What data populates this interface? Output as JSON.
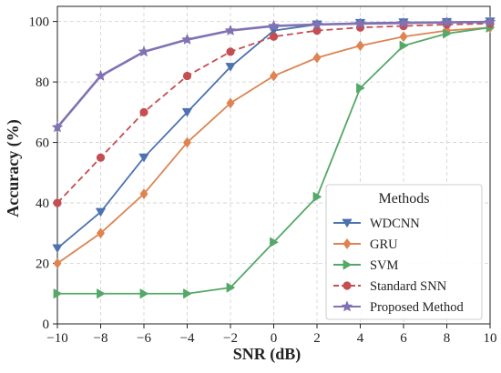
{
  "chart_data": {
    "type": "line",
    "title": "",
    "xlabel": "SNR (dB)",
    "ylabel": "Accuracy (%)",
    "xlim": [
      -10,
      10
    ],
    "ylim": [
      0,
      105
    ],
    "x": [
      -10,
      -8,
      -6,
      -4,
      -2,
      0,
      2,
      4,
      6,
      8,
      10
    ],
    "xticks": [
      -10,
      -8,
      -6,
      -4,
      -2,
      0,
      2,
      4,
      6,
      8,
      10
    ],
    "yticks": [
      0,
      20,
      40,
      60,
      80,
      100
    ],
    "grid": true,
    "legend": {
      "title": "Methods",
      "position": "bottom-right"
    },
    "series": [
      {
        "name": "WDCNN",
        "color": "#4c72b0",
        "marker": "triangle-down",
        "dashed": false,
        "values": [
          25,
          37,
          55,
          70,
          85,
          97,
          99,
          99.5,
          99.7,
          99.8,
          100
        ]
      },
      {
        "name": "GRU",
        "color": "#dd8452",
        "marker": "diamond",
        "dashed": false,
        "values": [
          20,
          30,
          43,
          60,
          73,
          82,
          88,
          92,
          95,
          97,
          98
        ]
      },
      {
        "name": "SVM",
        "color": "#55a868",
        "marker": "triangle-right",
        "dashed": false,
        "values": [
          10,
          10,
          10,
          10,
          12,
          27,
          42,
          78,
          92,
          96,
          98
        ]
      },
      {
        "name": "Standard SNN",
        "color": "#c44e52",
        "marker": "circle",
        "dashed": true,
        "values": [
          40,
          55,
          70,
          82,
          90,
          95,
          97,
          98,
          98.5,
          99,
          99.3
        ]
      },
      {
        "name": "Proposed Method",
        "color": "#8172b3",
        "marker": "star",
        "dashed": false,
        "values": [
          65,
          82,
          90,
          94,
          97,
          98.5,
          99,
          99.3,
          99.5,
          99.7,
          99.8
        ]
      }
    ]
  }
}
